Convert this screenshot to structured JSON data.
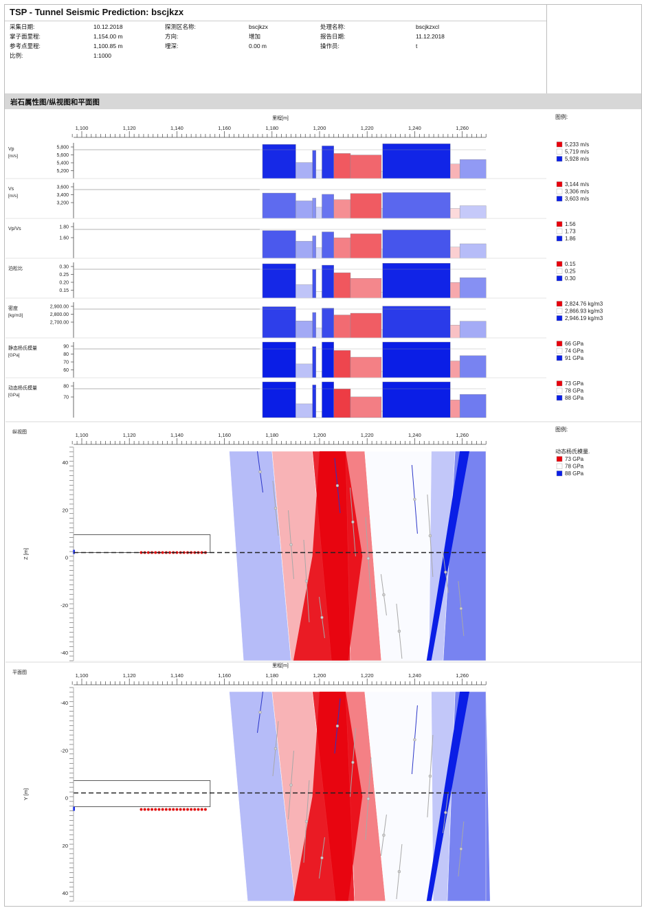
{
  "title": "TSP - Tunnel Seismic Prediction: bscjkzx",
  "info": {
    "col1": [
      {
        "label": "采集日期:",
        "value": "10.12.2018"
      },
      {
        "label": "掌子面里程:",
        "value": "1,154.00 m"
      },
      {
        "label": "参考点里程:",
        "value": "1,100.85 m"
      },
      {
        "label": "比例:",
        "value": "1:1000"
      }
    ],
    "col2": [
      {
        "label": "探测区名称:",
        "value": "bscjkzx"
      },
      {
        "label": "方向:",
        "value": "增加"
      },
      {
        "label": "埋深:",
        "value": "0.00 m"
      }
    ],
    "col3": [
      {
        "label": "处理名称:",
        "value": "bscjkzxcl"
      },
      {
        "label": "报告日期:",
        "value": "11.12.2018"
      },
      {
        "label": "操作员:",
        "value": "t"
      }
    ]
  },
  "section_title": "岩石属性图/纵视图和平面图",
  "axis": {
    "label": "里程[m]",
    "ticks": [
      "1,100",
      "1,120",
      "1,140",
      "1,160",
      "1,180",
      "1,200",
      "1,220",
      "1,240",
      "1,260"
    ]
  },
  "legend_title": "图例:",
  "colors": {
    "red": "#e8000b",
    "white": "#ffffff",
    "blue": "#0a1ee6",
    "ref": "#9a9a9a"
  },
  "property_panels": [
    {
      "name": "Vp",
      "unit": "[m/s]",
      "ticks": [
        "5,800",
        "5,600",
        "5,400",
        "5,200"
      ],
      "legend": [
        "5,233 m/s",
        "5,719 m/s",
        "5,928 m/s"
      ]
    },
    {
      "name": "Vs",
      "unit": "[m/s]",
      "ticks": [
        "3,600",
        "3,400",
        "3,200"
      ],
      "legend": [
        "3,144 m/s",
        "3,306 m/s",
        "3,603 m/s"
      ]
    },
    {
      "name": "Vp/Vs",
      "unit": "",
      "ticks": [
        "1.80",
        "1.60"
      ],
      "legend": [
        "1.56",
        "1.73",
        "1.86"
      ]
    },
    {
      "name": "泊松比",
      "unit": "",
      "ticks": [
        "0.30",
        "0.25",
        "0.20",
        "0.15"
      ],
      "legend": [
        "0.15",
        "0.25",
        "0.30"
      ]
    },
    {
      "name": "密度",
      "unit": "[kg/m3]",
      "ticks": [
        "2,900.00",
        "2,800.00",
        "2,700.00"
      ],
      "legend": [
        "2,824.76 kg/m3",
        "2,866.93 kg/m3",
        "2,946.19 kg/m3"
      ]
    },
    {
      "name": "静态杨氏模量",
      "unit": "[GPa]",
      "ticks": [
        "90",
        "80",
        "70",
        "60"
      ],
      "legend": [
        "66 GPa",
        "74 GPa",
        "91 GPa"
      ]
    },
    {
      "name": "动态杨氏模量",
      "unit": "[GPa]",
      "ticks": [
        "80",
        "70"
      ],
      "legend": [
        "73 GPa",
        "78 GPa",
        "88 GPa"
      ]
    }
  ],
  "bar_profile": [
    {
      "x0": 1176,
      "x1": 1190,
      "v": 0.95
    },
    {
      "x0": 1190,
      "x1": 1197,
      "v": 0.35
    },
    {
      "x0": 1197,
      "x1": 1198.5,
      "v": 0.75
    },
    {
      "x0": 1198.5,
      "x1": 1201,
      "v": 0.1
    },
    {
      "x0": 1201,
      "x1": 1206,
      "v": 0.9
    },
    {
      "x0": 1206,
      "x1": 1213,
      "v": -0.65
    },
    {
      "x0": 1213,
      "x1": 1226,
      "v": -0.6
    },
    {
      "x0": 1226,
      "x1": 1226.5,
      "v": 0.05
    },
    {
      "x0": 1226.5,
      "x1": 1255,
      "v": 0.97
    },
    {
      "x0": 1255,
      "x1": 1259,
      "v": -0.3
    },
    {
      "x0": 1259,
      "x1": 1270,
      "v": 0.45
    }
  ],
  "longitudinal": {
    "panel_label": "纵视图",
    "axis_label": "Z [m]",
    "y_ticks": [
      "40",
      "20",
      "0",
      "-20",
      "-40"
    ],
    "legend_title": "图例:",
    "legend_subtitle": "动态杨氏模量.",
    "legend": [
      "73 GPa",
      "78 GPa",
      "88 GPa"
    ]
  },
  "plan": {
    "panel_label": "平面图",
    "axis_label": "Y [m]",
    "y_ticks": [
      "-40",
      "-20",
      "0",
      "20",
      "40"
    ]
  }
}
